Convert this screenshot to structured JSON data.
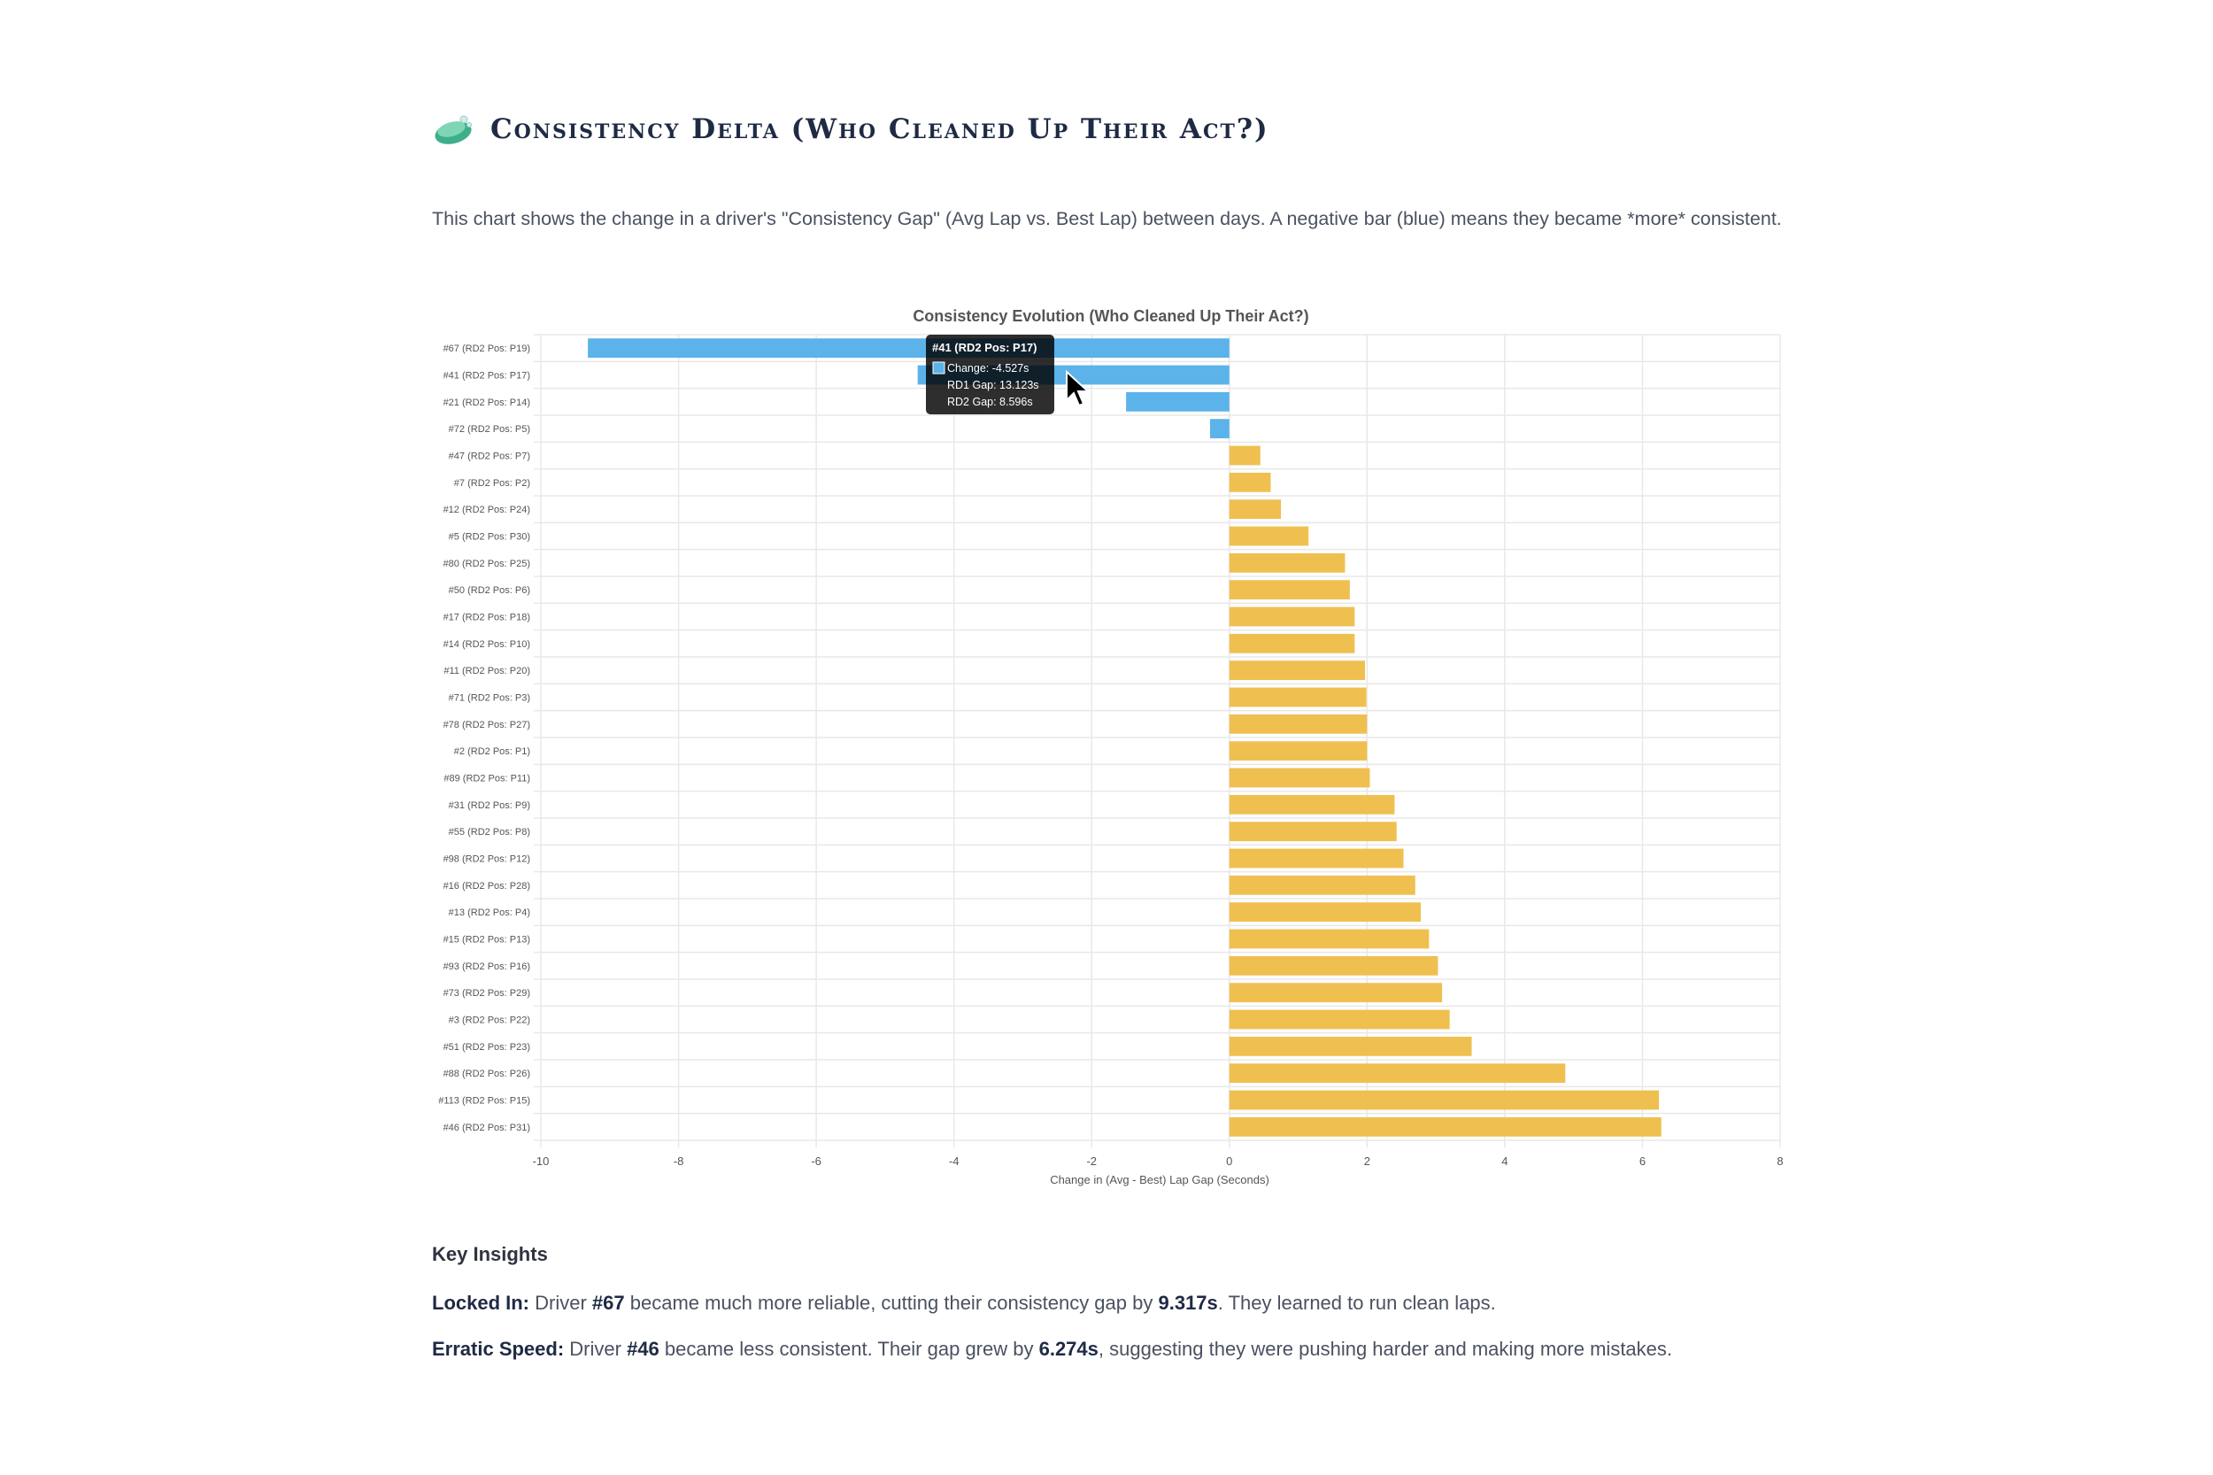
{
  "section": {
    "title": "Consistency Delta (Who Cleaned Up Their Act?)",
    "description": "This chart shows the change in a driver's \"Consistency Gap\" (Avg Lap vs. Best Lap) between days. A negative bar (blue) means they became *more* consistent."
  },
  "colors": {
    "negative": "#5bb3ea",
    "positive": "#efc050",
    "grid": "#e8e8e8",
    "text": "#555555"
  },
  "chart_data": {
    "type": "bar",
    "orientation": "horizontal",
    "title": "Consistency Evolution (Who Cleaned Up Their Act?)",
    "xlabel": "Change in (Avg - Best) Lap Gap (Seconds)",
    "ylabel": "",
    "xlim": [
      -10,
      8
    ],
    "xticks": [
      -10,
      -8,
      -6,
      -4,
      -2,
      0,
      2,
      4,
      6,
      8
    ],
    "grid": true,
    "categories": [
      "#67 (RD2 Pos: P19)",
      "#41 (RD2 Pos: P17)",
      "#21 (RD2 Pos: P14)",
      "#72 (RD2 Pos: P5)",
      "#47 (RD2 Pos: P7)",
      "#7 (RD2 Pos: P2)",
      "#12 (RD2 Pos: P24)",
      "#5 (RD2 Pos: P30)",
      "#80 (RD2 Pos: P25)",
      "#50 (RD2 Pos: P6)",
      "#17 (RD2 Pos: P18)",
      "#14 (RD2 Pos: P10)",
      "#11 (RD2 Pos: P20)",
      "#71 (RD2 Pos: P3)",
      "#78 (RD2 Pos: P27)",
      "#2 (RD2 Pos: P1)",
      "#89 (RD2 Pos: P11)",
      "#31 (RD2 Pos: P9)",
      "#55 (RD2 Pos: P8)",
      "#98 (RD2 Pos: P12)",
      "#16 (RD2 Pos: P28)",
      "#13 (RD2 Pos: P4)",
      "#15 (RD2 Pos: P13)",
      "#93 (RD2 Pos: P16)",
      "#73 (RD2 Pos: P29)",
      "#3 (RD2 Pos: P22)",
      "#51 (RD2 Pos: P23)",
      "#88 (RD2 Pos: P26)",
      "#113 (RD2 Pos: P15)",
      "#46 (RD2 Pos: P31)"
    ],
    "values": [
      -9.317,
      -4.527,
      -1.5,
      -0.28,
      0.45,
      0.6,
      0.75,
      1.15,
      1.68,
      1.75,
      1.82,
      1.82,
      1.97,
      1.99,
      2.0,
      2.0,
      2.04,
      2.4,
      2.43,
      2.53,
      2.7,
      2.78,
      2.9,
      3.03,
      3.09,
      3.2,
      3.52,
      4.88,
      6.24,
      6.274
    ],
    "tooltip": {
      "title": "#41 (RD2 Pos: P17)",
      "lines": [
        "Change: -4.527s",
        "RD1 Gap: 13.123s",
        "RD2 Gap: 8.596s"
      ],
      "target_index": 1
    }
  },
  "insights": {
    "heading": "Key Insights",
    "items": [
      {
        "label": "Locked In:",
        "t1": " Driver ",
        "b1": "#67",
        "t2": " became much more reliable, cutting their consistency gap by ",
        "b2": "9.317s",
        "t3": ". They learned to run clean laps."
      },
      {
        "label": "Erratic Speed:",
        "t1": " Driver ",
        "b1": "#46",
        "t2": " became less consistent. Their gap grew by ",
        "b2": "6.274s",
        "t3": ", suggesting they were pushing harder and making more mistakes."
      }
    ]
  }
}
